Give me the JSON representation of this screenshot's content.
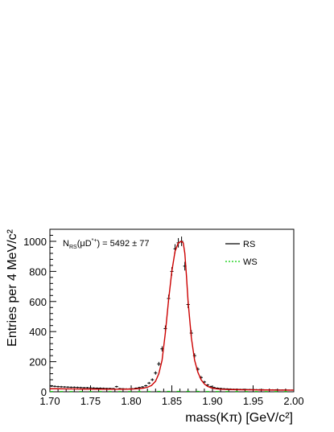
{
  "chart_data": {
    "type": "scatter",
    "title": "",
    "xlabel": "mass(Kπ) [GeV/c²]",
    "ylabel": "Entries per 4 MeV/c²",
    "xlim": [
      1.7,
      2.0
    ],
    "ylim": [
      0,
      1080
    ],
    "xticks": [
      1.7,
      1.75,
      1.8,
      1.85,
      1.9,
      1.95,
      2.0
    ],
    "xtick_labels": [
      "1.70",
      "1.75",
      "1.80",
      "1.85",
      "1.90",
      "1.95",
      "2.00"
    ],
    "yticks": [
      0,
      200,
      400,
      600,
      800,
      1000
    ],
    "ytick_labels": [
      "0",
      "200",
      "400",
      "600",
      "800",
      "1000"
    ],
    "grid": false,
    "legend_position": "top-right",
    "annotation": {
      "label": "N",
      "sub": "RS",
      "mid": "(μD",
      "sup": "*+",
      "tail": ") = 5492 ± 77"
    },
    "series": [
      {
        "name": "RS",
        "kind": "points",
        "color": "#000000",
        "x": [
          1.702,
          1.706,
          1.71,
          1.714,
          1.718,
          1.722,
          1.726,
          1.73,
          1.734,
          1.738,
          1.742,
          1.746,
          1.75,
          1.754,
          1.758,
          1.762,
          1.766,
          1.77,
          1.774,
          1.778,
          1.782,
          1.786,
          1.79,
          1.794,
          1.798,
          1.802,
          1.806,
          1.81,
          1.814,
          1.818,
          1.822,
          1.826,
          1.83,
          1.834,
          1.838,
          1.842,
          1.846,
          1.85,
          1.854,
          1.858,
          1.862,
          1.866,
          1.87,
          1.874,
          1.878,
          1.882,
          1.886,
          1.89,
          1.894,
          1.898,
          1.902,
          1.906,
          1.91,
          1.914,
          1.918,
          1.922,
          1.926,
          1.93,
          1.934,
          1.938,
          1.942,
          1.946,
          1.95,
          1.954,
          1.958,
          1.962,
          1.966,
          1.97,
          1.974,
          1.978,
          1.982,
          1.986,
          1.99,
          1.994,
          1.998
        ],
        "y": [
          38,
          36,
          34,
          33,
          32,
          31,
          30,
          30,
          29,
          28,
          27,
          27,
          26,
          25,
          24,
          24,
          23,
          22,
          22,
          21,
          34,
          21,
          20,
          19,
          19,
          20,
          24,
          28,
          32,
          40,
          58,
          80,
          125,
          185,
          285,
          420,
          620,
          800,
          950,
          990,
          1000,
          835,
          580,
          390,
          240,
          150,
          95,
          65,
          45,
          34,
          28,
          24,
          22,
          20,
          19,
          18,
          17,
          17,
          16,
          16,
          15,
          15,
          15,
          14,
          14,
          14,
          13,
          13,
          13,
          13,
          12,
          12,
          12,
          11,
          11
        ]
      },
      {
        "name": "",
        "kind": "fit",
        "color": "#cc0000",
        "x": [
          1.7,
          1.71,
          1.72,
          1.73,
          1.74,
          1.75,
          1.76,
          1.77,
          1.78,
          1.79,
          1.8,
          1.805,
          1.81,
          1.815,
          1.82,
          1.825,
          1.83,
          1.834,
          1.838,
          1.842,
          1.846,
          1.85,
          1.854,
          1.858,
          1.862,
          1.864,
          1.866,
          1.868,
          1.87,
          1.874,
          1.878,
          1.882,
          1.886,
          1.89,
          1.894,
          1.898,
          1.902,
          1.906,
          1.91,
          1.92,
          1.93,
          1.94,
          1.95,
          1.96,
          1.97,
          1.98,
          1.99,
          2.0
        ],
        "y": [
          20,
          20,
          19,
          19,
          18,
          18,
          17,
          17,
          17,
          17,
          18,
          19,
          21,
          24,
          30,
          42,
          70,
          120,
          210,
          390,
          610,
          800,
          935,
          990,
          1000,
          990,
          920,
          770,
          600,
          360,
          210,
          130,
          80,
          52,
          36,
          27,
          22,
          19,
          17,
          15,
          14,
          13,
          13,
          12,
          12,
          11,
          11,
          11
        ]
      },
      {
        "name": "WS",
        "kind": "points",
        "color": "#00cc00",
        "x": [
          1.702,
          1.714,
          1.726,
          1.738,
          1.75,
          1.762,
          1.774,
          1.786,
          1.798,
          1.81,
          1.822,
          1.834,
          1.846,
          1.858,
          1.87,
          1.882,
          1.894,
          1.906,
          1.918,
          1.93,
          1.942,
          1.954,
          1.966,
          1.978,
          1.99
        ],
        "y": [
          2,
          2,
          2,
          2,
          2,
          2,
          2,
          2,
          2,
          2,
          2,
          3,
          3,
          3,
          3,
          3,
          2,
          2,
          2,
          2,
          2,
          2,
          2,
          2,
          2
        ]
      }
    ]
  }
}
